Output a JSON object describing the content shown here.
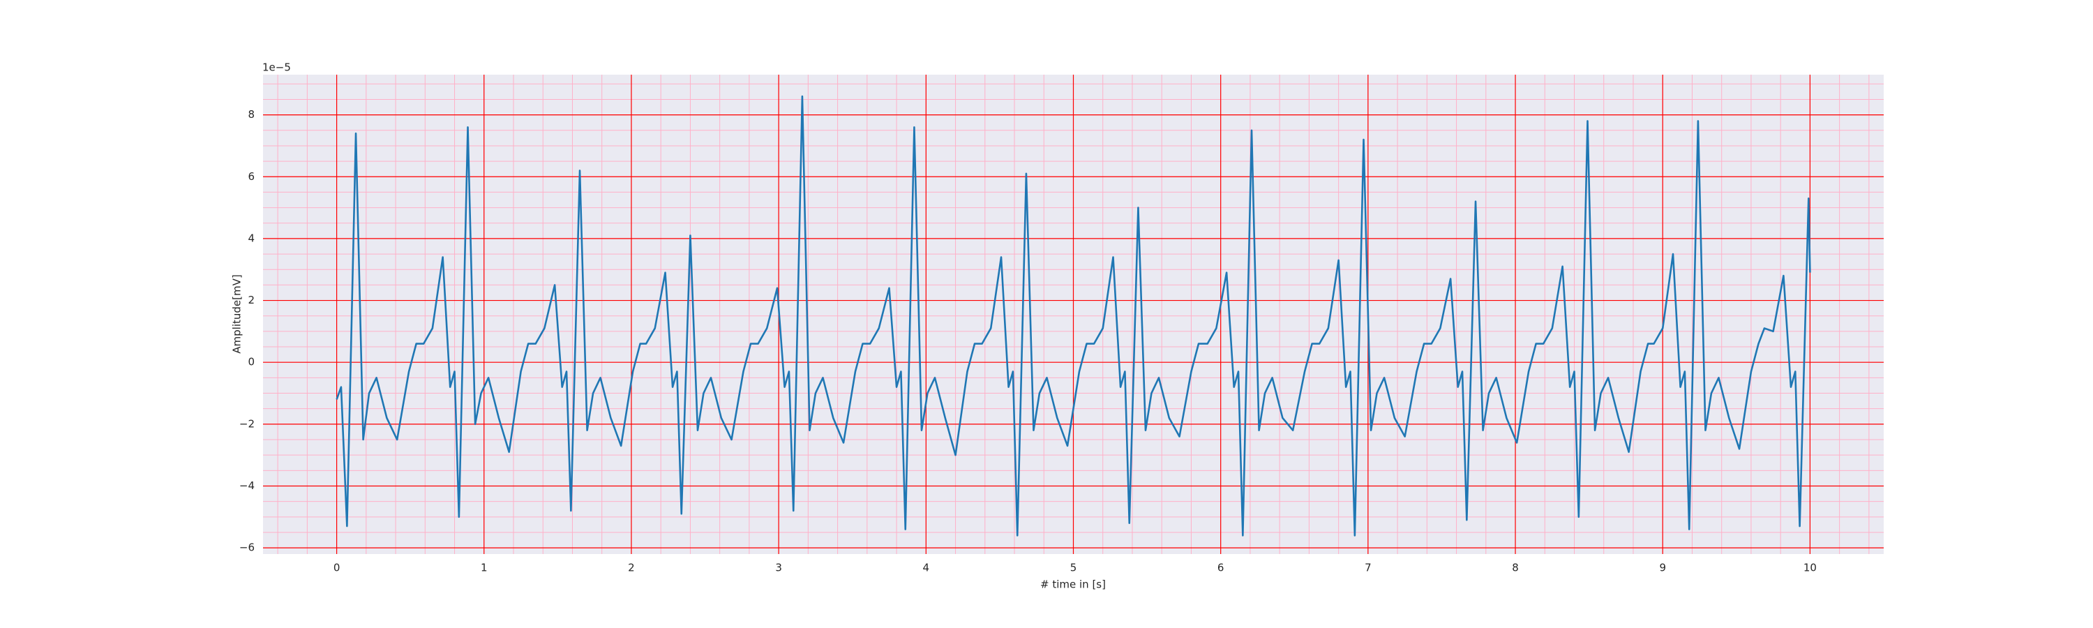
{
  "chart_data": {
    "type": "line",
    "xlabel": "# time in [s]",
    "ylabel": "Amplitude[mV]",
    "y_offset_label": "1e−5",
    "x": [
      0.0,
      0.03,
      0.07,
      0.13,
      0.18,
      0.22,
      0.27,
      0.34,
      0.41,
      0.49,
      0.54,
      0.59,
      0.65,
      0.72,
      0.77,
      0.8,
      0.83,
      0.89,
      0.94,
      0.98,
      1.03,
      1.1,
      1.17,
      1.25,
      1.3,
      1.35,
      1.41,
      1.48,
      1.53,
      1.56,
      1.59,
      1.65,
      1.7,
      1.74,
      1.79,
      1.86,
      1.93,
      2.01,
      2.06,
      2.1,
      2.16,
      2.23,
      2.28,
      2.31,
      2.34,
      2.4,
      2.45,
      2.49,
      2.54,
      2.61,
      2.68,
      2.76,
      2.81,
      2.86,
      2.92,
      2.99,
      3.04,
      3.07,
      3.1,
      3.16,
      3.21,
      3.25,
      3.3,
      3.37,
      3.44,
      3.52,
      3.57,
      3.62,
      3.68,
      3.75,
      3.8,
      3.83,
      3.86,
      3.92,
      3.97,
      4.01,
      4.06,
      4.13,
      4.2,
      4.28,
      4.33,
      4.38,
      4.44,
      4.51,
      4.56,
      4.59,
      4.62,
      4.68,
      4.73,
      4.77,
      4.82,
      4.89,
      4.96,
      5.04,
      5.09,
      5.14,
      5.2,
      5.27,
      5.32,
      5.35,
      5.38,
      5.44,
      5.49,
      5.53,
      5.58,
      5.65,
      5.72,
      5.8,
      5.85,
      5.91,
      5.97,
      6.04,
      6.09,
      6.12,
      6.15,
      6.21,
      6.26,
      6.3,
      6.35,
      6.42,
      6.49,
      6.57,
      6.62,
      6.67,
      6.73,
      6.8,
      6.85,
      6.88,
      6.91,
      6.97,
      7.02,
      7.06,
      7.11,
      7.18,
      7.25,
      7.33,
      7.38,
      7.43,
      7.49,
      7.56,
      7.61,
      7.64,
      7.67,
      7.73,
      7.78,
      7.82,
      7.87,
      7.94,
      8.01,
      8.09,
      8.14,
      8.19,
      8.25,
      8.32,
      8.37,
      8.4,
      8.43,
      8.49,
      8.54,
      8.58,
      8.63,
      8.7,
      8.77,
      8.85,
      8.9,
      8.94,
      9.0,
      9.07,
      9.12,
      9.15,
      9.18,
      9.24,
      9.29,
      9.33,
      9.38,
      9.45,
      9.52,
      9.6,
      9.65,
      9.69,
      9.75,
      9.82,
      9.87,
      9.9,
      9.93,
      9.99,
      10.0
    ],
    "values": [
      -1.2,
      -0.8,
      -5.3,
      7.4,
      -2.5,
      -1.0,
      -0.5,
      -1.8,
      -2.5,
      -0.3,
      0.6,
      0.6,
      1.1,
      3.4,
      -0.8,
      -0.3,
      -5.0,
      7.6,
      -2.0,
      -1.0,
      -0.5,
      -1.8,
      -2.9,
      -0.3,
      0.6,
      0.6,
      1.1,
      2.5,
      -0.8,
      -0.3,
      -4.8,
      6.2,
      -2.2,
      -1.0,
      -0.5,
      -1.8,
      -2.7,
      -0.3,
      0.6,
      0.6,
      1.1,
      2.9,
      -0.8,
      -0.3,
      -4.9,
      4.1,
      -2.2,
      -1.0,
      -0.5,
      -1.8,
      -2.5,
      -0.3,
      0.6,
      0.6,
      1.1,
      2.4,
      -0.8,
      -0.3,
      -4.8,
      8.6,
      -2.2,
      -1.0,
      -0.5,
      -1.8,
      -2.6,
      -0.3,
      0.6,
      0.6,
      1.1,
      2.4,
      -0.8,
      -0.3,
      -5.4,
      7.6,
      -2.2,
      -1.0,
      -0.5,
      -1.8,
      -3.0,
      -0.3,
      0.6,
      0.6,
      1.1,
      3.4,
      -0.8,
      -0.3,
      -5.6,
      6.1,
      -2.2,
      -1.0,
      -0.5,
      -1.8,
      -2.7,
      -0.3,
      0.6,
      0.6,
      1.1,
      3.4,
      -0.8,
      -0.3,
      -5.2,
      5.0,
      -2.2,
      -1.0,
      -0.5,
      -1.8,
      -2.4,
      -0.3,
      0.6,
      0.6,
      1.1,
      2.9,
      -0.8,
      -0.3,
      -5.6,
      7.5,
      -2.2,
      -1.0,
      -0.5,
      -1.8,
      -2.2,
      -0.3,
      0.6,
      0.6,
      1.1,
      3.3,
      -0.8,
      -0.3,
      -5.6,
      7.2,
      -2.2,
      -1.0,
      -0.5,
      -1.8,
      -2.4,
      -0.3,
      0.6,
      0.6,
      1.1,
      2.7,
      -0.8,
      -0.3,
      -5.1,
      5.2,
      -2.2,
      -1.0,
      -0.5,
      -1.8,
      -2.6,
      -0.3,
      0.6,
      0.6,
      1.1,
      3.1,
      -0.8,
      -0.3,
      -5.0,
      7.8,
      -2.2,
      -1.0,
      -0.5,
      -1.8,
      -2.9,
      -0.3,
      0.6,
      0.6,
      1.1,
      3.5,
      -0.8,
      -0.3,
      -5.4,
      7.8,
      -2.2,
      -1.0,
      -0.5,
      -1.8,
      -2.8,
      -0.3,
      0.6,
      1.1,
      1.0,
      2.8,
      -0.8,
      -0.3,
      -5.3,
      5.3,
      2.9
    ],
    "color": "#1f77b4",
    "xlim": [
      -0.5,
      10.5
    ],
    "xticks": [
      0,
      1,
      2,
      3,
      4,
      5,
      6,
      7,
      8,
      9,
      10
    ],
    "ylim": [
      -6.2,
      9.3
    ],
    "yticks": [
      {
        "value": -6,
        "label": "−6"
      },
      {
        "value": -4,
        "label": "−4"
      },
      {
        "value": -2,
        "label": "−2"
      },
      0,
      2,
      4,
      6,
      8
    ],
    "grid": true,
    "grid_color": "#ff0000",
    "minor_grid": true,
    "minor_grid_color": "#ffb0c8",
    "xminor_step": 0.2,
    "yminor_step": 0.5,
    "background": "#eaeaf2"
  }
}
